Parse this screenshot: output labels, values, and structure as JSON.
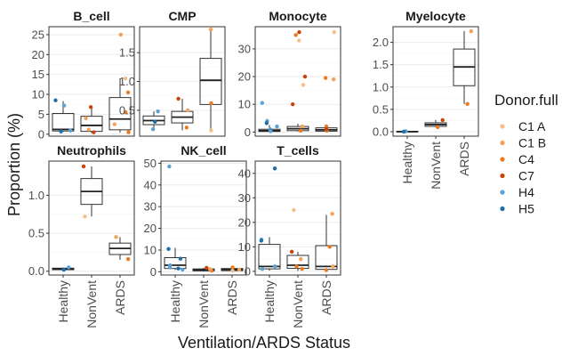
{
  "figure": {
    "xlabel": "Ventilation/ARDS Status",
    "ylabel": "Proportion (%)",
    "legend_title": "Donor.full",
    "legend_placement": "right"
  },
  "chart_data": {
    "type": "box",
    "groups": [
      "Healthy",
      "NonVent",
      "ARDS"
    ],
    "donors": [
      {
        "name": "C1 A",
        "color": "#f7be8a"
      },
      {
        "name": "C1 B",
        "color": "#f3a25c"
      },
      {
        "name": "C4",
        "color": "#ec7a1e"
      },
      {
        "name": "C7",
        "color": "#c9430a"
      },
      {
        "name": "H4",
        "color": "#5aa2d4"
      },
      {
        "name": "H5",
        "color": "#1f6ea6"
      }
    ],
    "grid": "horizontal",
    "panels": [
      {
        "title": "B_cell",
        "ylim": [
          -0.5,
          27
        ],
        "yticks": [
          0,
          5,
          10,
          15,
          20,
          25
        ],
        "boxes": [
          {
            "group": "Healthy",
            "q1": 0.8,
            "median": 1.2,
            "q3": 5.2,
            "lower": 0.6,
            "upper": 8.3
          },
          {
            "group": "NonVent",
            "q1": 0.7,
            "median": 2.2,
            "q3": 4.5,
            "lower": 0.3,
            "upper": 7.0
          },
          {
            "group": "ARDS",
            "q1": 1.1,
            "median": 3.8,
            "q3": 9.2,
            "lower": 0.4,
            "upper": 14.0
          }
        ],
        "points": [
          {
            "group": "Healthy",
            "donor": "H4",
            "value": 0.9
          },
          {
            "group": "Healthy",
            "donor": "H5",
            "value": 8.5
          },
          {
            "group": "Healthy",
            "donor": "H4",
            "value": 7.2
          },
          {
            "group": "Healthy",
            "donor": "H5",
            "value": 0.7
          },
          {
            "group": "NonVent",
            "donor": "C7",
            "value": 6.8
          },
          {
            "group": "NonVent",
            "donor": "C7",
            "value": 0.5
          },
          {
            "group": "NonVent",
            "donor": "C1 B",
            "value": 4.0
          },
          {
            "group": "NonVent",
            "donor": "C1 B",
            "value": 1.2
          },
          {
            "group": "ARDS",
            "donor": "C1 B",
            "value": 25.0
          },
          {
            "group": "ARDS",
            "donor": "C4",
            "value": 10.5
          },
          {
            "group": "ARDS",
            "donor": "C4",
            "value": 5.5
          },
          {
            "group": "ARDS",
            "donor": "C1 B",
            "value": 2.5
          },
          {
            "group": "ARDS",
            "donor": "C4",
            "value": 0.5
          },
          {
            "group": "ARDS",
            "donor": "C1 A",
            "value": 14.0
          }
        ]
      },
      {
        "title": "CMP",
        "ylim": [
          0.05,
          1.95
        ],
        "yticks": [
          0.5,
          1.0,
          1.5
        ],
        "boxes": [
          {
            "group": "Healthy",
            "q1": 0.25,
            "median": 0.32,
            "q3": 0.4,
            "lower": 0.17,
            "upper": 0.48
          },
          {
            "group": "NonVent",
            "q1": 0.28,
            "median": 0.38,
            "q3": 0.48,
            "lower": 0.15,
            "upper": 0.7
          },
          {
            "group": "ARDS",
            "q1": 0.6,
            "median": 1.02,
            "q3": 1.4,
            "lower": 0.12,
            "upper": 1.9
          }
        ],
        "points": [
          {
            "group": "Healthy",
            "donor": "H4",
            "value": 0.48
          },
          {
            "group": "Healthy",
            "donor": "H5",
            "value": 0.3
          },
          {
            "group": "Healthy",
            "donor": "H4",
            "value": 0.17
          },
          {
            "group": "NonVent",
            "donor": "C7",
            "value": 0.7
          },
          {
            "group": "NonVent",
            "donor": "C1 B",
            "value": 0.5
          },
          {
            "group": "NonVent",
            "donor": "C4",
            "value": 0.2
          },
          {
            "group": "ARDS",
            "donor": "C1 B",
            "value": 1.9
          },
          {
            "group": "ARDS",
            "donor": "C4",
            "value": 0.62
          },
          {
            "group": "ARDS",
            "donor": "C1 A",
            "value": 0.15
          }
        ]
      },
      {
        "title": "Monocyte",
        "ylim": [
          -1.5,
          38
        ],
        "yticks": [
          0,
          10,
          20,
          30
        ],
        "boxes": [
          {
            "group": "Healthy",
            "q1": 0.2,
            "median": 0.5,
            "q3": 1.0,
            "lower": 0.0,
            "upper": 2.5
          },
          {
            "group": "NonVent",
            "q1": 0.5,
            "median": 1.2,
            "q3": 2.0,
            "lower": 0.2,
            "upper": 3.0
          },
          {
            "group": "ARDS",
            "q1": 0.3,
            "median": 0.8,
            "q3": 1.5,
            "lower": 0.1,
            "upper": 2.5
          }
        ],
        "points": [
          {
            "group": "Healthy",
            "donor": "H4",
            "value": 10.5
          },
          {
            "group": "Healthy",
            "donor": "H4",
            "value": 4.0
          },
          {
            "group": "Healthy",
            "donor": "H5",
            "value": 3.2
          },
          {
            "group": "Healthy",
            "donor": "H4",
            "value": 2.0
          },
          {
            "group": "Healthy",
            "donor": "H4",
            "value": 1.0
          },
          {
            "group": "Healthy",
            "donor": "H5",
            "value": 0.5
          },
          {
            "group": "Healthy",
            "donor": "H4",
            "value": 0.3
          },
          {
            "group": "NonVent",
            "donor": "C7",
            "value": 36.0
          },
          {
            "group": "NonVent",
            "donor": "C1 A",
            "value": 33.0
          },
          {
            "group": "NonVent",
            "donor": "C4",
            "value": 35.0
          },
          {
            "group": "NonVent",
            "donor": "C7",
            "value": 20.0
          },
          {
            "group": "NonVent",
            "donor": "C1 A",
            "value": 17.0
          },
          {
            "group": "NonVent",
            "donor": "C7",
            "value": 10.0
          },
          {
            "group": "NonVent",
            "donor": "C1 B",
            "value": 2.0
          },
          {
            "group": "NonVent",
            "donor": "C4",
            "value": 0.5
          },
          {
            "group": "ARDS",
            "donor": "C1 A",
            "value": 36.0
          },
          {
            "group": "ARDS",
            "donor": "C4",
            "value": 19.5
          },
          {
            "group": "ARDS",
            "donor": "C1 B",
            "value": 19.0
          },
          {
            "group": "ARDS",
            "donor": "C4",
            "value": 2.0
          },
          {
            "group": "ARDS",
            "donor": "C4",
            "value": 0.5
          },
          {
            "group": "ARDS",
            "donor": "C7",
            "value": 1.0
          }
        ]
      },
      {
        "title": "Myelocyte",
        "ylim": [
          -0.1,
          2.35
        ],
        "yticks": [
          0.0,
          0.5,
          1.0,
          1.5,
          2.0
        ],
        "boxes": [
          {
            "group": "Healthy",
            "q1": 0.0,
            "median": 0.0,
            "q3": 0.01,
            "lower": 0.0,
            "upper": 0.02
          },
          {
            "group": "NonVent",
            "q1": 0.12,
            "median": 0.16,
            "q3": 0.2,
            "lower": 0.1,
            "upper": 0.26
          },
          {
            "group": "ARDS",
            "q1": 1.03,
            "median": 1.45,
            "q3": 1.85,
            "lower": 0.62,
            "upper": 2.25
          }
        ],
        "points": [
          {
            "group": "Healthy",
            "donor": "H4",
            "value": 0.01
          },
          {
            "group": "Healthy",
            "donor": "H5",
            "value": 0.0
          },
          {
            "group": "NonVent",
            "donor": "C7",
            "value": 0.26
          },
          {
            "group": "NonVent",
            "donor": "C4",
            "value": 0.1
          },
          {
            "group": "ARDS",
            "donor": "C1 B",
            "value": 2.25
          },
          {
            "group": "ARDS",
            "donor": "C4",
            "value": 0.62
          }
        ]
      },
      {
        "title": "Neutrophils",
        "ylim": [
          -0.05,
          1.45
        ],
        "yticks": [
          0.0,
          0.5,
          1.0
        ],
        "boxes": [
          {
            "group": "Healthy",
            "q1": 0.02,
            "median": 0.03,
            "q3": 0.04,
            "lower": 0.01,
            "upper": 0.05
          },
          {
            "group": "NonVent",
            "q1": 0.88,
            "median": 1.05,
            "q3": 1.22,
            "lower": 0.72,
            "upper": 1.38
          },
          {
            "group": "ARDS",
            "q1": 0.22,
            "median": 0.3,
            "q3": 0.37,
            "lower": 0.15,
            "upper": 0.45
          }
        ],
        "points": [
          {
            "group": "Healthy",
            "donor": "H4",
            "value": 0.05
          },
          {
            "group": "Healthy",
            "donor": "H5",
            "value": 0.02
          },
          {
            "group": "NonVent",
            "donor": "C7",
            "value": 1.38
          },
          {
            "group": "NonVent",
            "donor": "C1 A",
            "value": 0.72
          },
          {
            "group": "ARDS",
            "donor": "C1 B",
            "value": 0.45
          },
          {
            "group": "ARDS",
            "donor": "C4",
            "value": 0.16
          }
        ]
      },
      {
        "title": "NK_cell",
        "ylim": [
          -1.5,
          51
        ],
        "yticks": [
          0,
          10,
          20,
          30,
          40,
          50
        ],
        "boxes": [
          {
            "group": "Healthy",
            "q1": 1.5,
            "median": 3.0,
            "q3": 6.5,
            "lower": 0.8,
            "upper": 11.0
          },
          {
            "group": "NonVent",
            "q1": 0.4,
            "median": 0.9,
            "q3": 1.3,
            "lower": 0.1,
            "upper": 1.8
          },
          {
            "group": "ARDS",
            "q1": 0.5,
            "median": 1.0,
            "q3": 1.5,
            "lower": 0.2,
            "upper": 2.0
          }
        ],
        "points": [
          {
            "group": "Healthy",
            "donor": "H4",
            "value": 48.5
          },
          {
            "group": "Healthy",
            "donor": "H5",
            "value": 10.5
          },
          {
            "group": "Healthy",
            "donor": "H5",
            "value": 6.0
          },
          {
            "group": "Healthy",
            "donor": "H4",
            "value": 3.0
          },
          {
            "group": "Healthy",
            "donor": "H4",
            "value": 2.0
          },
          {
            "group": "Healthy",
            "donor": "H5",
            "value": 1.5
          },
          {
            "group": "Healthy",
            "donor": "H4",
            "value": 1.0
          },
          {
            "group": "NonVent",
            "donor": "C7",
            "value": 1.8
          },
          {
            "group": "NonVent",
            "donor": "C4",
            "value": 0.5
          },
          {
            "group": "NonVent",
            "donor": "C1 B",
            "value": 1.2
          },
          {
            "group": "ARDS",
            "donor": "C4",
            "value": 2.0
          },
          {
            "group": "ARDS",
            "donor": "C1 B",
            "value": 1.0
          },
          {
            "group": "ARDS",
            "donor": "C1 A",
            "value": 0.5
          }
        ]
      },
      {
        "title": "T_cells",
        "ylim": [
          -1.5,
          45
        ],
        "yticks": [
          0,
          10,
          20,
          30,
          40
        ],
        "boxes": [
          {
            "group": "Healthy",
            "q1": 1.0,
            "median": 2.0,
            "q3": 11.0,
            "lower": 0.3,
            "upper": 14.0
          },
          {
            "group": "NonVent",
            "q1": 1.2,
            "median": 2.5,
            "q3": 6.5,
            "lower": 0.2,
            "upper": 8.0
          },
          {
            "group": "ARDS",
            "q1": 0.8,
            "median": 2.0,
            "q3": 10.5,
            "lower": 0.3,
            "upper": 23.0
          }
        ],
        "points": [
          {
            "group": "Healthy",
            "donor": "H5",
            "value": 42.0
          },
          {
            "group": "Healthy",
            "donor": "H4",
            "value": 13.0
          },
          {
            "group": "Healthy",
            "donor": "H5",
            "value": 12.5
          },
          {
            "group": "Healthy",
            "donor": "H4",
            "value": 2.0
          },
          {
            "group": "Healthy",
            "donor": "H4",
            "value": 1.0
          },
          {
            "group": "NonVent",
            "donor": "C1 A",
            "value": 25.0
          },
          {
            "group": "NonVent",
            "donor": "C7",
            "value": 8.0
          },
          {
            "group": "NonVent",
            "donor": "C1 B",
            "value": 5.0
          },
          {
            "group": "NonVent",
            "donor": "C4",
            "value": 2.0
          },
          {
            "group": "NonVent",
            "donor": "C4",
            "value": 1.0
          },
          {
            "group": "ARDS",
            "donor": "C1 B",
            "value": 23.5
          },
          {
            "group": "ARDS",
            "donor": "C4",
            "value": 10.0
          },
          {
            "group": "ARDS",
            "donor": "C1 B",
            "value": 2.0
          },
          {
            "group": "ARDS",
            "donor": "C4",
            "value": 0.5
          }
        ]
      }
    ]
  }
}
